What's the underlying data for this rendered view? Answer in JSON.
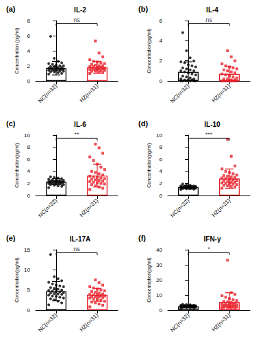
{
  "chart_data": [
    {
      "type": "bar",
      "label": "(a)",
      "title": "IL-2",
      "ylabel": "Concentration (pg/ml)",
      "categories": [
        "NC(n=32)",
        "HZ(n=31)"
      ],
      "values": [
        1.7,
        1.8
      ],
      "errors": [
        0.9,
        0.8
      ],
      "colors": [
        "#000000",
        "#e8202a"
      ],
      "significance": "ns",
      "ylim": [
        0,
        8
      ],
      "yticks": [
        0,
        2,
        4,
        6,
        8
      ],
      "grid": false,
      "points": [
        [
          0.9,
          1.0,
          1.1,
          1.2,
          1.2,
          1.3,
          1.3,
          1.4,
          1.4,
          1.4,
          1.5,
          1.5,
          1.5,
          1.6,
          1.6,
          1.6,
          1.7,
          1.7,
          1.7,
          1.8,
          1.8,
          1.9,
          1.9,
          2.0,
          2.0,
          2.1,
          2.2,
          2.3,
          2.4,
          2.6,
          3.0,
          5.9
        ],
        [
          1.0,
          1.1,
          1.2,
          1.3,
          1.3,
          1.4,
          1.4,
          1.5,
          1.5,
          1.5,
          1.6,
          1.6,
          1.6,
          1.7,
          1.7,
          1.8,
          1.8,
          1.9,
          1.9,
          2.0,
          2.0,
          2.1,
          2.2,
          2.3,
          2.4,
          2.5,
          2.6,
          2.8,
          3.2,
          3.7,
          5.3
        ]
      ]
    },
    {
      "type": "bar",
      "label": "(b)",
      "title": "IL-4",
      "ylabel": "Concentration(pg/ml)",
      "categories": [
        "NC(n=32)",
        "HZ(n=31)"
      ],
      "values": [
        0.9,
        0.7
      ],
      "errors": [
        1.0,
        0.7
      ],
      "colors": [
        "#000000",
        "#e8202a"
      ],
      "significance": "ns",
      "ylim": [
        0,
        6
      ],
      "yticks": [
        0,
        2,
        4,
        6
      ],
      "grid": false,
      "points": [
        [
          0.0,
          0.0,
          0.0,
          0.0,
          0.0,
          0.0,
          0.1,
          0.1,
          0.1,
          0.2,
          0.2,
          0.3,
          0.4,
          0.5,
          0.6,
          0.7,
          0.8,
          0.9,
          1.0,
          1.0,
          1.1,
          1.2,
          1.3,
          1.4,
          1.5,
          1.6,
          1.8,
          1.9,
          2.0,
          2.3,
          3.0,
          4.8
        ],
        [
          0.0,
          0.0,
          0.0,
          0.0,
          0.0,
          0.0,
          0.0,
          0.0,
          0.0,
          0.0,
          0.1,
          0.1,
          0.2,
          0.2,
          0.3,
          0.4,
          0.5,
          0.6,
          0.7,
          0.8,
          0.9,
          1.0,
          1.1,
          1.2,
          1.3,
          1.4,
          1.5,
          1.7,
          2.0,
          2.4,
          3.0
        ]
      ]
    },
    {
      "type": "bar",
      "label": "(c)",
      "title": "IL-6",
      "ylabel": "Concentration(pg/ml)",
      "categories": [
        "NC(n=32)",
        "HZ(n=31)"
      ],
      "values": [
        2.3,
        3.3
      ],
      "errors": [
        0.5,
        1.9
      ],
      "colors": [
        "#000000",
        "#e8202a"
      ],
      "significance": "**",
      "ylim": [
        0,
        10
      ],
      "yticks": [
        0,
        2,
        4,
        6,
        8,
        10
      ],
      "grid": false,
      "points": [
        [
          1.3,
          1.5,
          1.6,
          1.7,
          1.8,
          1.8,
          1.9,
          1.9,
          2.0,
          2.0,
          2.0,
          2.1,
          2.1,
          2.1,
          2.2,
          2.2,
          2.2,
          2.3,
          2.3,
          2.3,
          2.4,
          2.4,
          2.4,
          2.5,
          2.5,
          2.6,
          2.6,
          2.7,
          2.8,
          2.9,
          3.0,
          3.1
        ],
        [
          1.0,
          1.2,
          1.4,
          1.6,
          1.8,
          1.9,
          2.0,
          2.1,
          2.2,
          2.3,
          2.4,
          2.5,
          2.6,
          2.7,
          2.8,
          2.9,
          3.0,
          3.1,
          3.2,
          3.4,
          3.6,
          3.8,
          4.0,
          4.3,
          4.7,
          5.2,
          5.8,
          6.4,
          7.0,
          7.9,
          8.5
        ]
      ]
    },
    {
      "type": "bar",
      "label": "(d)",
      "title": "IL-10",
      "ylabel": "Concentration(pg/ml)",
      "categories": [
        "NC(n=32)",
        "HZ(n=31)"
      ],
      "values": [
        1.4,
        2.8
      ],
      "errors": [
        0.2,
        1.6
      ],
      "colors": [
        "#000000",
        "#e8202a"
      ],
      "significance": "***",
      "ylim": [
        0,
        10
      ],
      "yticks": [
        0,
        2,
        4,
        6,
        8,
        10
      ],
      "grid": false,
      "points": [
        [
          1.0,
          1.05,
          1.1,
          1.1,
          1.15,
          1.2,
          1.2,
          1.2,
          1.25,
          1.25,
          1.3,
          1.3,
          1.3,
          1.3,
          1.35,
          1.35,
          1.35,
          1.4,
          1.4,
          1.4,
          1.4,
          1.45,
          1.45,
          1.5,
          1.5,
          1.5,
          1.55,
          1.6,
          1.6,
          1.7,
          1.8,
          1.9
        ],
        [
          1.2,
          1.4,
          1.5,
          1.6,
          1.7,
          1.8,
          1.9,
          2.0,
          2.0,
          2.1,
          2.2,
          2.2,
          2.3,
          2.4,
          2.5,
          2.6,
          2.7,
          2.8,
          2.9,
          3.0,
          3.1,
          3.2,
          3.3,
          3.4,
          3.6,
          3.8,
          4.0,
          4.4,
          4.9,
          6.5,
          9.3
        ]
      ]
    },
    {
      "type": "bar",
      "label": "(e)",
      "title": "IL-17A",
      "ylabel": "Concentration(pg/ml)",
      "categories": [
        "NC(n=32)",
        "HZ(n=31)"
      ],
      "values": [
        4.7,
        3.8
      ],
      "errors": [
        2.4,
        1.6
      ],
      "colors": [
        "#000000",
        "#e8202a"
      ],
      "significance": "ns",
      "ylim": [
        0,
        15
      ],
      "yticks": [
        0,
        5,
        10,
        15
      ],
      "grid": false,
      "points": [
        [
          1.3,
          1.8,
          2.2,
          2.5,
          2.8,
          3.0,
          3.2,
          3.4,
          3.5,
          3.7,
          3.9,
          4.0,
          4.1,
          4.2,
          4.3,
          4.5,
          4.6,
          4.7,
          4.9,
          5.0,
          5.2,
          5.4,
          5.6,
          5.8,
          6.0,
          6.2,
          6.5,
          6.9,
          7.3,
          7.8,
          8.3,
          13.8
        ],
        [
          0.8,
          1.2,
          1.5,
          1.8,
          2.0,
          2.2,
          2.4,
          2.6,
          2.8,
          3.0,
          3.1,
          3.2,
          3.3,
          3.4,
          3.5,
          3.6,
          3.7,
          3.8,
          3.9,
          4.0,
          4.2,
          4.4,
          4.6,
          4.8,
          5.0,
          5.2,
          5.5,
          5.8,
          6.2,
          6.8,
          7.5
        ]
      ]
    },
    {
      "type": "bar",
      "label": "(f)",
      "title": "IFN-γ",
      "ylabel": "Concentration(pg/ml)",
      "categories": [
        "NC(n=32)",
        "HZ(n=31)"
      ],
      "values": [
        2.5,
        5.3
      ],
      "errors": [
        0.7,
        6.2
      ],
      "colors": [
        "#000000",
        "#e8202a"
      ],
      "significance": "*",
      "ylim": [
        0,
        40
      ],
      "yticks": [
        0,
        10,
        20,
        30,
        40
      ],
      "grid": false,
      "points": [
        [
          1.2,
          1.4,
          1.5,
          1.6,
          1.7,
          1.8,
          1.9,
          2.0,
          2.0,
          2.1,
          2.2,
          2.2,
          2.3,
          2.3,
          2.4,
          2.4,
          2.5,
          2.5,
          2.6,
          2.6,
          2.7,
          2.7,
          2.8,
          2.9,
          3.0,
          3.0,
          3.1,
          3.2,
          3.3,
          3.5,
          3.6,
          3.8
        ],
        [
          1.0,
          1.3,
          1.5,
          1.7,
          1.9,
          2.0,
          2.2,
          2.3,
          2.5,
          2.6,
          2.8,
          3.0,
          3.1,
          3.3,
          3.5,
          3.7,
          3.9,
          4.1,
          4.4,
          4.7,
          5.0,
          5.4,
          5.8,
          6.3,
          6.9,
          7.6,
          8.5,
          9.5,
          10.5,
          11.5,
          33.0
        ]
      ]
    }
  ]
}
